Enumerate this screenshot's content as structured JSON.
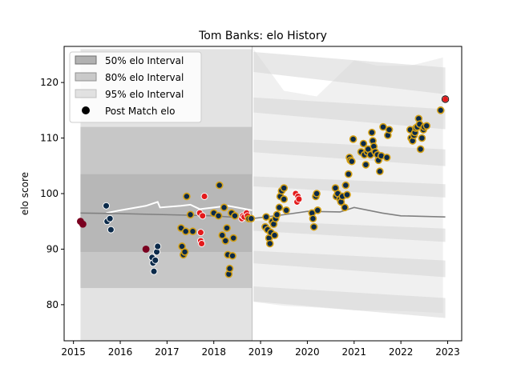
{
  "chart_data": {
    "type": "scatter",
    "title": "Tom Banks: elo History",
    "xlabel": "",
    "ylabel": "elo score",
    "xlim": [
      2014.8,
      2023.3
    ],
    "ylim": [
      73.5,
      126.5
    ],
    "xticks": [
      2015,
      2016,
      2017,
      2018,
      2019,
      2020,
      2021,
      2022,
      2023
    ],
    "yticks": [
      80,
      90,
      100,
      110,
      120
    ],
    "grid": false,
    "legend_position": "top-left",
    "legend": [
      {
        "label": "50% elo Interval",
        "kind": "band",
        "color": "#808080",
        "opacity": 0.55
      },
      {
        "label": "80% elo Interval",
        "kind": "band",
        "color": "#a0a0a0",
        "opacity": 0.45
      },
      {
        "label": "95% elo Interval",
        "kind": "band",
        "color": "#c8c8c8",
        "opacity": 0.45
      },
      {
        "label": "Post Match elo",
        "kind": "marker",
        "color": "#000000"
      }
    ],
    "colors": {
      "navy": "#0b2a4a",
      "gold": "#d4a015",
      "red": "#e31a1c",
      "maroon": "#7a0020",
      "mean_line": "#808080",
      "white_line": "#ffffff"
    },
    "bands": {
      "left_block": {
        "x": [
          2015.15,
          2018.82
        ],
        "p95": [
          73.0,
          126.0
        ],
        "p80": [
          83.0,
          112.0
        ],
        "p50": [
          89.5,
          103.5
        ]
      },
      "right_center": 96.2,
      "right_p95": [
        [
          2018.85,
          80.5,
          126.0
        ],
        [
          2019.5,
          79.8,
          118.5
        ],
        [
          2020.2,
          79.5,
          117.5
        ],
        [
          2021.0,
          79.0,
          124.0
        ],
        [
          2021.5,
          79.0,
          123.0
        ],
        [
          2022.2,
          78.8,
          123.0
        ],
        [
          2022.9,
          78.5,
          124.5
        ]
      ]
    },
    "series": [
      {
        "name": "Post Match elo",
        "points": [
          {
            "x": 2015.15,
            "y": 95.0,
            "c": "maroon"
          },
          {
            "x": 2015.2,
            "y": 94.5,
            "c": "maroon"
          },
          {
            "x": 2015.7,
            "y": 97.8,
            "c": "navy"
          },
          {
            "x": 2015.72,
            "y": 95.0,
            "c": "navy"
          },
          {
            "x": 2015.78,
            "y": 95.5,
            "c": "navy"
          },
          {
            "x": 2015.8,
            "y": 93.5,
            "c": "navy"
          },
          {
            "x": 2016.55,
            "y": 90.0,
            "c": "maroon"
          },
          {
            "x": 2016.68,
            "y": 88.5,
            "c": "navy"
          },
          {
            "x": 2016.7,
            "y": 87.5,
            "c": "navy"
          },
          {
            "x": 2016.72,
            "y": 86.0,
            "c": "navy"
          },
          {
            "x": 2016.75,
            "y": 88.0,
            "c": "navy"
          },
          {
            "x": 2016.78,
            "y": 89.5,
            "c": "navy"
          },
          {
            "x": 2016.8,
            "y": 90.5,
            "c": "navy"
          },
          {
            "x": 2017.3,
            "y": 93.8,
            "c": "gold"
          },
          {
            "x": 2017.32,
            "y": 90.5,
            "c": "gold"
          },
          {
            "x": 2017.35,
            "y": 89.0,
            "c": "gold"
          },
          {
            "x": 2017.38,
            "y": 89.5,
            "c": "gold"
          },
          {
            "x": 2017.4,
            "y": 93.2,
            "c": "gold"
          },
          {
            "x": 2017.42,
            "y": 99.5,
            "c": "gold"
          },
          {
            "x": 2017.5,
            "y": 96.2,
            "c": "gold"
          },
          {
            "x": 2017.55,
            "y": 93.2,
            "c": "gold"
          },
          {
            "x": 2017.7,
            "y": 96.5,
            "c": "red"
          },
          {
            "x": 2017.72,
            "y": 93.0,
            "c": "red"
          },
          {
            "x": 2017.72,
            "y": 91.5,
            "c": "red"
          },
          {
            "x": 2017.74,
            "y": 91.0,
            "c": "red"
          },
          {
            "x": 2017.76,
            "y": 96.0,
            "c": "red"
          },
          {
            "x": 2017.8,
            "y": 99.5,
            "c": "red"
          },
          {
            "x": 2018.0,
            "y": 96.5,
            "c": "gold"
          },
          {
            "x": 2018.1,
            "y": 96.0,
            "c": "gold"
          },
          {
            "x": 2018.12,
            "y": 101.5,
            "c": "gold"
          },
          {
            "x": 2018.18,
            "y": 92.5,
            "c": "gold"
          },
          {
            "x": 2018.22,
            "y": 97.5,
            "c": "gold"
          },
          {
            "x": 2018.25,
            "y": 91.5,
            "c": "gold"
          },
          {
            "x": 2018.28,
            "y": 93.8,
            "c": "gold"
          },
          {
            "x": 2018.3,
            "y": 89.0,
            "c": "gold"
          },
          {
            "x": 2018.32,
            "y": 85.5,
            "c": "gold"
          },
          {
            "x": 2018.34,
            "y": 86.5,
            "c": "gold"
          },
          {
            "x": 2018.38,
            "y": 96.5,
            "c": "gold"
          },
          {
            "x": 2018.4,
            "y": 88.8,
            "c": "gold"
          },
          {
            "x": 2018.42,
            "y": 92.0,
            "c": "gold"
          },
          {
            "x": 2018.45,
            "y": 96.0,
            "c": "gold"
          },
          {
            "x": 2018.6,
            "y": 95.5,
            "c": "red"
          },
          {
            "x": 2018.62,
            "y": 96.0,
            "c": "red"
          },
          {
            "x": 2018.65,
            "y": 95.8,
            "c": "red"
          },
          {
            "x": 2018.7,
            "y": 96.5,
            "c": "red"
          },
          {
            "x": 2018.72,
            "y": 96.0,
            "c": "red"
          },
          {
            "x": 2018.75,
            "y": 95.5,
            "c": "gold"
          },
          {
            "x": 2018.8,
            "y": 95.5,
            "c": "gold"
          },
          {
            "x": 2019.1,
            "y": 94.0,
            "c": "gold"
          },
          {
            "x": 2019.12,
            "y": 95.8,
            "c": "gold"
          },
          {
            "x": 2019.15,
            "y": 93.5,
            "c": "gold"
          },
          {
            "x": 2019.18,
            "y": 92.0,
            "c": "gold"
          },
          {
            "x": 2019.2,
            "y": 91.0,
            "c": "gold"
          },
          {
            "x": 2019.22,
            "y": 93.0,
            "c": "gold"
          },
          {
            "x": 2019.25,
            "y": 95.0,
            "c": "gold"
          },
          {
            "x": 2019.28,
            "y": 94.5,
            "c": "gold"
          },
          {
            "x": 2019.3,
            "y": 92.5,
            "c": "gold"
          },
          {
            "x": 2019.32,
            "y": 95.5,
            "c": "gold"
          },
          {
            "x": 2019.35,
            "y": 96.2,
            "c": "gold"
          },
          {
            "x": 2019.4,
            "y": 97.5,
            "c": "gold"
          },
          {
            "x": 2019.42,
            "y": 99.5,
            "c": "gold"
          },
          {
            "x": 2019.45,
            "y": 100.5,
            "c": "gold"
          },
          {
            "x": 2019.5,
            "y": 101.0,
            "c": "gold"
          },
          {
            "x": 2019.5,
            "y": 99.0,
            "c": "gold"
          },
          {
            "x": 2019.55,
            "y": 97.0,
            "c": "gold"
          },
          {
            "x": 2019.75,
            "y": 100.0,
            "c": "red"
          },
          {
            "x": 2019.78,
            "y": 98.5,
            "c": "red"
          },
          {
            "x": 2019.8,
            "y": 99.5,
            "c": "red"
          },
          {
            "x": 2019.82,
            "y": 99.0,
            "c": "red"
          },
          {
            "x": 2020.1,
            "y": 96.5,
            "c": "gold"
          },
          {
            "x": 2020.12,
            "y": 95.5,
            "c": "gold"
          },
          {
            "x": 2020.14,
            "y": 94.0,
            "c": "gold"
          },
          {
            "x": 2020.18,
            "y": 99.5,
            "c": "gold"
          },
          {
            "x": 2020.2,
            "y": 100.0,
            "c": "gold"
          },
          {
            "x": 2020.22,
            "y": 97.0,
            "c": "gold"
          },
          {
            "x": 2020.6,
            "y": 101.0,
            "c": "gold"
          },
          {
            "x": 2020.62,
            "y": 99.5,
            "c": "gold"
          },
          {
            "x": 2020.65,
            "y": 100.0,
            "c": "gold"
          },
          {
            "x": 2020.7,
            "y": 99.0,
            "c": "gold"
          },
          {
            "x": 2020.72,
            "y": 98.5,
            "c": "gold"
          },
          {
            "x": 2020.75,
            "y": 99.5,
            "c": "gold"
          },
          {
            "x": 2020.8,
            "y": 97.5,
            "c": "gold"
          },
          {
            "x": 2020.82,
            "y": 101.5,
            "c": "gold"
          },
          {
            "x": 2020.85,
            "y": 99.8,
            "c": "gold"
          },
          {
            "x": 2020.88,
            "y": 103.5,
            "c": "gold"
          },
          {
            "x": 2020.9,
            "y": 106.5,
            "c": "gold"
          },
          {
            "x": 2020.92,
            "y": 106.0,
            "c": "gold"
          },
          {
            "x": 2020.95,
            "y": 105.8,
            "c": "gold"
          },
          {
            "x": 2020.98,
            "y": 109.8,
            "c": "gold"
          },
          {
            "x": 2021.15,
            "y": 107.5,
            "c": "gold"
          },
          {
            "x": 2021.2,
            "y": 109.0,
            "c": "gold"
          },
          {
            "x": 2021.22,
            "y": 107.0,
            "c": "gold"
          },
          {
            "x": 2021.25,
            "y": 105.2,
            "c": "gold"
          },
          {
            "x": 2021.28,
            "y": 107.5,
            "c": "gold"
          },
          {
            "x": 2021.3,
            "y": 108.0,
            "c": "gold"
          },
          {
            "x": 2021.35,
            "y": 107.0,
            "c": "gold"
          },
          {
            "x": 2021.38,
            "y": 111.0,
            "c": "gold"
          },
          {
            "x": 2021.4,
            "y": 109.5,
            "c": "gold"
          },
          {
            "x": 2021.42,
            "y": 108.5,
            "c": "gold"
          },
          {
            "x": 2021.45,
            "y": 107.5,
            "c": "gold"
          },
          {
            "x": 2021.5,
            "y": 107.0,
            "c": "gold"
          },
          {
            "x": 2021.52,
            "y": 106.0,
            "c": "gold"
          },
          {
            "x": 2021.55,
            "y": 104.0,
            "c": "gold"
          },
          {
            "x": 2021.58,
            "y": 106.8,
            "c": "gold"
          },
          {
            "x": 2021.62,
            "y": 112.0,
            "c": "gold"
          },
          {
            "x": 2021.7,
            "y": 106.5,
            "c": "gold"
          },
          {
            "x": 2021.72,
            "y": 110.5,
            "c": "gold"
          },
          {
            "x": 2021.75,
            "y": 111.5,
            "c": "gold"
          },
          {
            "x": 2022.2,
            "y": 111.5,
            "c": "gold"
          },
          {
            "x": 2022.22,
            "y": 110.0,
            "c": "gold"
          },
          {
            "x": 2022.25,
            "y": 109.5,
            "c": "gold"
          },
          {
            "x": 2022.28,
            "y": 110.5,
            "c": "gold"
          },
          {
            "x": 2022.3,
            "y": 111.0,
            "c": "gold"
          },
          {
            "x": 2022.32,
            "y": 111.8,
            "c": "gold"
          },
          {
            "x": 2022.35,
            "y": 112.0,
            "c": "gold"
          },
          {
            "x": 2022.38,
            "y": 113.5,
            "c": "gold"
          },
          {
            "x": 2022.4,
            "y": 112.5,
            "c": "gold"
          },
          {
            "x": 2022.42,
            "y": 108.0,
            "c": "gold"
          },
          {
            "x": 2022.45,
            "y": 110.0,
            "c": "gold"
          },
          {
            "x": 2022.48,
            "y": 111.5,
            "c": "gold"
          },
          {
            "x": 2022.5,
            "y": 112.0,
            "c": "gold"
          },
          {
            "x": 2022.55,
            "y": 112.2,
            "c": "gold"
          },
          {
            "x": 2022.85,
            "y": 115.0,
            "c": "gold"
          },
          {
            "x": 2022.95,
            "y": 117.0,
            "c": "red"
          }
        ]
      },
      {
        "name": "white-mean-line",
        "line": [
          [
            2015.7,
            96.5
          ],
          [
            2016.0,
            97.0
          ],
          [
            2016.55,
            97.8
          ],
          [
            2016.8,
            98.5
          ],
          [
            2016.85,
            97.5
          ],
          [
            2017.3,
            97.8
          ],
          [
            2017.5,
            98.0
          ],
          [
            2017.7,
            97.2
          ],
          [
            2018.0,
            97.5
          ],
          [
            2018.3,
            97.8
          ],
          [
            2018.5,
            97.5
          ],
          [
            2018.82,
            97.0
          ]
        ]
      },
      {
        "name": "grey-mean-line",
        "line": [
          [
            2015.15,
            96.5
          ],
          [
            2016.0,
            96.4
          ],
          [
            2017.0,
            96.2
          ],
          [
            2018.0,
            96.0
          ],
          [
            2018.82,
            95.5
          ],
          [
            2019.5,
            96.2
          ],
          [
            2020.0,
            96.8
          ],
          [
            2020.7,
            96.7
          ],
          [
            2021.0,
            97.5
          ],
          [
            2021.6,
            96.5
          ],
          [
            2022.0,
            96.0
          ],
          [
            2022.95,
            95.8
          ]
        ]
      }
    ]
  }
}
